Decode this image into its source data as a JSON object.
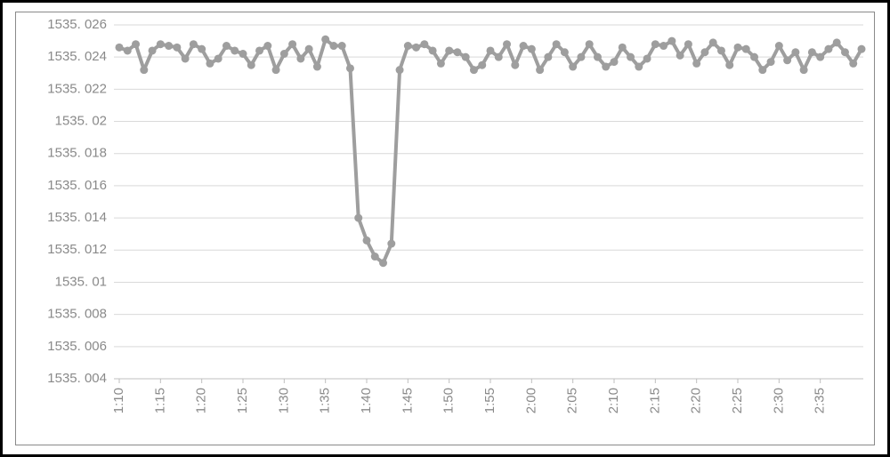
{
  "chart": {
    "type": "line",
    "background_color": "#ffffff",
    "grid_color": "#d9d9d9",
    "axis_line_color": "#bfbfbf",
    "y": {
      "min": 1535.004,
      "max": 1535.026,
      "tick_step": 0.002,
      "label_fontsize": 15,
      "label_color": "#8a8a8a",
      "labels": [
        "1535.004",
        "1535.006",
        "1535.008",
        "1535.01",
        "1535.012",
        "1535.014",
        "1535.016",
        "1535.018",
        "1535.02",
        "1535.022",
        "1535.024",
        "1535.026"
      ]
    },
    "x": {
      "labels": [
        "1:10",
        "1:15",
        "1:20",
        "1:25",
        "1:30",
        "1:35",
        "1:40",
        "1:45",
        "1:50",
        "1:55",
        "2:00",
        "2:05",
        "2:10",
        "2:15",
        "2:20",
        "2:25",
        "2:30",
        "2:35"
      ],
      "label_fontsize": 15,
      "label_color": "#8a8a8a",
      "rotation_deg": -90
    },
    "series": {
      "color": "#9e9e9e",
      "line_width": 4,
      "marker": "circle",
      "marker_radius": 4.5,
      "values": [
        1535.0246,
        1535.0244,
        1535.0248,
        1535.0232,
        1535.0244,
        1535.0248,
        1535.0247,
        1535.0246,
        1535.0239,
        1535.0248,
        1535.0245,
        1535.0236,
        1535.0239,
        1535.0247,
        1535.0244,
        1535.0242,
        1535.0235,
        1535.0244,
        1535.0247,
        1535.0232,
        1535.0242,
        1535.0248,
        1535.0239,
        1535.0245,
        1535.0234,
        1535.0251,
        1535.0247,
        1535.0247,
        1535.0233,
        1535.014,
        1535.0126,
        1535.0116,
        1535.0112,
        1535.0124,
        1535.0232,
        1535.0247,
        1535.0246,
        1535.0248,
        1535.0244,
        1535.0236,
        1535.0244,
        1535.0243,
        1535.024,
        1535.0232,
        1535.0235,
        1535.0244,
        1535.024,
        1535.0248,
        1535.0235,
        1535.0247,
        1535.0245,
        1535.0232,
        1535.024,
        1535.0248,
        1535.0243,
        1535.0234,
        1535.024,
        1535.0248,
        1535.024,
        1535.0234,
        1535.0237,
        1535.0246,
        1535.024,
        1535.0234,
        1535.0239,
        1535.0248,
        1535.0247,
        1535.025,
        1535.0241,
        1535.0248,
        1535.0236,
        1535.0243,
        1535.0249,
        1535.0244,
        1535.0235,
        1535.0246,
        1535.0245,
        1535.024,
        1535.0232,
        1535.0237,
        1535.0247,
        1535.0238,
        1535.0243,
        1535.0232,
        1535.0243,
        1535.024,
        1535.0245,
        1535.0249,
        1535.0243,
        1535.0236,
        1535.0245
      ]
    },
    "label_separator": ". ",
    "decimal_format_integer_trim": true
  }
}
